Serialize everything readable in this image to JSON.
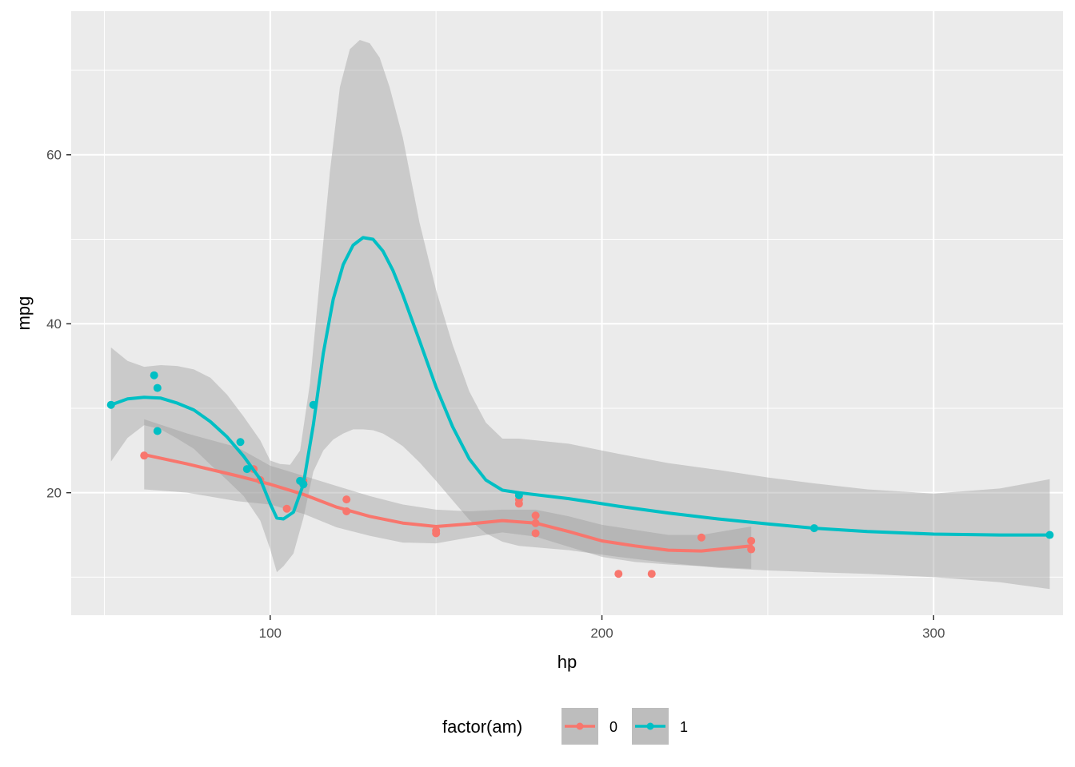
{
  "chart_data": {
    "type": "scatter",
    "title": "",
    "xlabel": "hp",
    "ylabel": "mpg",
    "xlim": [
      40,
      339
    ],
    "ylim": [
      5.5,
      77
    ],
    "x_ticks": [
      100,
      200,
      300
    ],
    "y_ticks": [
      20,
      40,
      60
    ],
    "x_tick_labels": [
      "100",
      "200",
      "300"
    ],
    "y_tick_labels": [
      "20",
      "40",
      "60"
    ],
    "grid": true,
    "smooth": "loess with confidence band",
    "legend": {
      "title": "factor(am)",
      "position": "bottom"
    },
    "series": [
      {
        "name": "0",
        "color": "#F8766D",
        "points": [
          [
            110,
            21.4
          ],
          [
            175,
            18.7
          ],
          [
            105,
            18.1
          ],
          [
            245,
            14.3
          ],
          [
            62,
            24.4
          ],
          [
            95,
            22.8
          ],
          [
            123,
            19.2
          ],
          [
            123,
            17.8
          ],
          [
            180,
            16.4
          ],
          [
            180,
            17.3
          ],
          [
            180,
            15.2
          ],
          [
            205,
            10.4
          ],
          [
            215,
            10.4
          ],
          [
            230,
            14.7
          ],
          [
            97,
            21.5
          ],
          [
            150,
            15.5
          ],
          [
            150,
            15.2
          ],
          [
            245,
            13.3
          ],
          [
            175,
            19.2
          ]
        ],
        "smooth": [
          [
            62,
            24.5
          ],
          [
            75,
            23.4
          ],
          [
            90,
            22.0
          ],
          [
            100,
            21.0
          ],
          [
            110,
            19.8
          ],
          [
            120,
            18.3
          ],
          [
            130,
            17.2
          ],
          [
            140,
            16.4
          ],
          [
            150,
            16.0
          ],
          [
            160,
            16.3
          ],
          [
            170,
            16.7
          ],
          [
            180,
            16.4
          ],
          [
            190,
            15.4
          ],
          [
            200,
            14.3
          ],
          [
            210,
            13.7
          ],
          [
            220,
            13.2
          ],
          [
            230,
            13.1
          ],
          [
            245,
            13.7
          ]
        ],
        "band_upper": [
          [
            62,
            28.7
          ],
          [
            75,
            27.0
          ],
          [
            90,
            25.4
          ],
          [
            100,
            23.2
          ],
          [
            110,
            22.0
          ],
          [
            120,
            20.8
          ],
          [
            130,
            19.6
          ],
          [
            140,
            18.6
          ],
          [
            150,
            18.0
          ],
          [
            160,
            17.8
          ],
          [
            170,
            18.0
          ],
          [
            180,
            18.0
          ],
          [
            190,
            17.2
          ],
          [
            200,
            16.2
          ],
          [
            210,
            15.6
          ],
          [
            220,
            15.0
          ],
          [
            230,
            15.0
          ],
          [
            245,
            16.0
          ]
        ],
        "band_lower": [
          [
            62,
            20.4
          ],
          [
            75,
            20.0
          ],
          [
            90,
            19.0
          ],
          [
            100,
            18.6
          ],
          [
            110,
            17.5
          ],
          [
            120,
            15.9
          ],
          [
            130,
            14.9
          ],
          [
            140,
            14.1
          ],
          [
            150,
            14.0
          ],
          [
            160,
            14.7
          ],
          [
            170,
            15.3
          ],
          [
            180,
            14.8
          ],
          [
            190,
            13.6
          ],
          [
            200,
            12.4
          ],
          [
            210,
            11.8
          ],
          [
            220,
            11.5
          ],
          [
            230,
            11.3
          ],
          [
            245,
            11.0
          ]
        ]
      },
      {
        "name": "1",
        "color": "#00BFC4",
        "points": [
          [
            110,
            21.0
          ],
          [
            110,
            21.0
          ],
          [
            93,
            22.8
          ],
          [
            66,
            32.4
          ],
          [
            52,
            30.4
          ],
          [
            65,
            33.9
          ],
          [
            66,
            27.3
          ],
          [
            91,
            26.0
          ],
          [
            113,
            30.4
          ],
          [
            264,
            15.8
          ],
          [
            175,
            19.7
          ],
          [
            335,
            15.0
          ],
          [
            109,
            21.4
          ]
        ],
        "smooth": [
          [
            52,
            30.4
          ],
          [
            57,
            31.1
          ],
          [
            62,
            31.3
          ],
          [
            67,
            31.2
          ],
          [
            72,
            30.6
          ],
          [
            77,
            29.8
          ],
          [
            82,
            28.4
          ],
          [
            87,
            26.6
          ],
          [
            92,
            24.3
          ],
          [
            97,
            21.6
          ],
          [
            100,
            18.7
          ],
          [
            102,
            17.0
          ],
          [
            104,
            16.9
          ],
          [
            107,
            17.7
          ],
          [
            110,
            21.0
          ],
          [
            113,
            28.0
          ],
          [
            116,
            36.5
          ],
          [
            119,
            42.9
          ],
          [
            122,
            47.0
          ],
          [
            125,
            49.3
          ],
          [
            128,
            50.2
          ],
          [
            131,
            50.0
          ],
          [
            134,
            48.6
          ],
          [
            137,
            46.3
          ],
          [
            140,
            43.4
          ],
          [
            145,
            38.0
          ],
          [
            150,
            32.5
          ],
          [
            155,
            27.8
          ],
          [
            160,
            24.0
          ],
          [
            165,
            21.5
          ],
          [
            170,
            20.3
          ],
          [
            175,
            20.0
          ],
          [
            190,
            19.3
          ],
          [
            205,
            18.4
          ],
          [
            220,
            17.6
          ],
          [
            235,
            16.9
          ],
          [
            250,
            16.3
          ],
          [
            264,
            15.8
          ],
          [
            280,
            15.4
          ],
          [
            300,
            15.1
          ],
          [
            320,
            15.0
          ],
          [
            335,
            15.0
          ]
        ],
        "band_upper": [
          [
            52,
            37.2
          ],
          [
            57,
            35.6
          ],
          [
            62,
            34.9
          ],
          [
            67,
            35.1
          ],
          [
            72,
            35.0
          ],
          [
            77,
            34.6
          ],
          [
            82,
            33.6
          ],
          [
            87,
            31.6
          ],
          [
            92,
            29.0
          ],
          [
            97,
            26.2
          ],
          [
            100,
            23.8
          ],
          [
            103,
            23.4
          ],
          [
            106,
            23.3
          ],
          [
            109,
            25.0
          ],
          [
            112,
            33.0
          ],
          [
            115,
            45.5
          ],
          [
            118,
            58.0
          ],
          [
            121,
            68.0
          ],
          [
            124,
            72.5
          ],
          [
            127,
            73.6
          ],
          [
            130,
            73.2
          ],
          [
            133,
            71.5
          ],
          [
            136,
            68.0
          ],
          [
            140,
            62.0
          ],
          [
            145,
            52.0
          ],
          [
            150,
            44.0
          ],
          [
            155,
            37.5
          ],
          [
            160,
            32.0
          ],
          [
            165,
            28.3
          ],
          [
            170,
            26.4
          ],
          [
            175,
            26.4
          ],
          [
            190,
            25.8
          ],
          [
            205,
            24.6
          ],
          [
            220,
            23.5
          ],
          [
            235,
            22.7
          ],
          [
            250,
            21.8
          ],
          [
            264,
            21.1
          ],
          [
            280,
            20.4
          ],
          [
            300,
            19.9
          ],
          [
            320,
            20.5
          ],
          [
            335,
            21.6
          ]
        ],
        "band_lower": [
          [
            52,
            23.7
          ],
          [
            57,
            26.5
          ],
          [
            62,
            28.0
          ],
          [
            67,
            27.5
          ],
          [
            72,
            26.4
          ],
          [
            77,
            25.2
          ],
          [
            82,
            23.3
          ],
          [
            87,
            21.5
          ],
          [
            92,
            19.6
          ],
          [
            97,
            16.7
          ],
          [
            100,
            13.3
          ],
          [
            102,
            10.6
          ],
          [
            104,
            11.3
          ],
          [
            107,
            12.8
          ],
          [
            110,
            17.0
          ],
          [
            113,
            22.5
          ],
          [
            116,
            25.0
          ],
          [
            119,
            26.3
          ],
          [
            122,
            27.0
          ],
          [
            125,
            27.5
          ],
          [
            128,
            27.5
          ],
          [
            131,
            27.4
          ],
          [
            134,
            27.0
          ],
          [
            137,
            26.3
          ],
          [
            140,
            25.5
          ],
          [
            145,
            23.6
          ],
          [
            150,
            21.4
          ],
          [
            155,
            19.1
          ],
          [
            160,
            16.8
          ],
          [
            165,
            15.2
          ],
          [
            170,
            14.2
          ],
          [
            175,
            13.7
          ],
          [
            190,
            13.2
          ],
          [
            205,
            12.4
          ],
          [
            220,
            11.7
          ],
          [
            235,
            11.1
          ],
          [
            250,
            10.8
          ],
          [
            264,
            10.6
          ],
          [
            280,
            10.4
          ],
          [
            300,
            10.0
          ],
          [
            320,
            9.4
          ],
          [
            335,
            8.6
          ]
        ]
      }
    ]
  }
}
